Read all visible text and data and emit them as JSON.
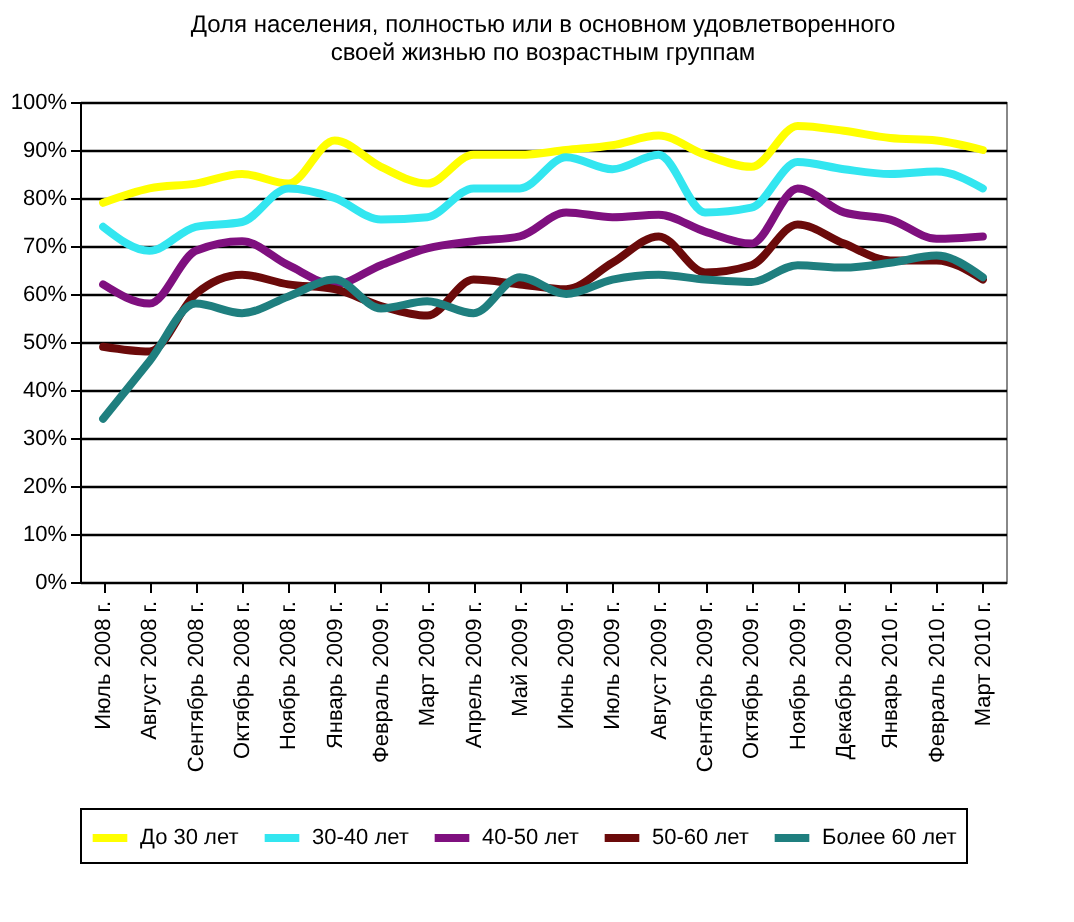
{
  "chart_data": {
    "type": "line",
    "title": [
      "Доля населения, полностью или в основном удовлетворенного",
      "своей жизнью по возрастным группам"
    ],
    "categories": [
      "Июль 2008 г.",
      "Август 2008 г.",
      "Сентябрь 2008 г.",
      "Октябрь 2008 г.",
      "Ноябрь 2008 г.",
      "Январь 2009 г.",
      "Февраль 2009 г.",
      "Март 2009 г.",
      "Апрель 2009 г.",
      "Май 2009 г.",
      "Июнь 2009 г.",
      "Июль 2009 г.",
      "Август 2009 г.",
      "Сентябрь 2009 г.",
      "Октябрь 2009 г.",
      "Ноябрь 2009 г.",
      "Декабрь 2009 г.",
      "Январь 2010 г.",
      "Февраль 2010 г.",
      "Март 2010 г."
    ],
    "series": [
      {
        "name": "До 30 лет",
        "color": "#ffff00",
        "values": [
          79,
          82,
          83,
          85,
          83,
          92,
          86.5,
          83,
          89,
          89,
          90,
          91,
          93,
          89,
          86.5,
          95,
          94,
          92.5,
          92,
          90
        ]
      },
      {
        "name": "30-40 лет",
        "color": "#33e6f0",
        "values": [
          74,
          69,
          74,
          75,
          82,
          80,
          75.5,
          76,
          82,
          82,
          88.5,
          86,
          89,
          77,
          78,
          87.5,
          86,
          85,
          85.5,
          82
        ]
      },
      {
        "name": "40-50 лет",
        "color": "#7f107f",
        "values": [
          62,
          58,
          69,
          71,
          66,
          62,
          66,
          69.5,
          71,
          72,
          77,
          76,
          76.5,
          73,
          70.5,
          82,
          77,
          75.5,
          71.5,
          72
        ]
      },
      {
        "name": "50-60 лет",
        "color": "#6b0a0a",
        "values": [
          49,
          48,
          60,
          64,
          62,
          61,
          57.5,
          55.5,
          63,
          62,
          61,
          66.5,
          72,
          64.5,
          66,
          74.5,
          70.5,
          67,
          67,
          63
        ]
      },
      {
        "name": "Более 60 лет",
        "color": "#1f7f7f",
        "values": [
          34,
          46,
          58,
          56,
          59.5,
          63,
          57,
          58.5,
          56,
          63.5,
          60,
          63,
          64,
          63,
          62.5,
          66,
          65.5,
          66.5,
          68,
          63.5
        ]
      }
    ],
    "ylim": [
      0,
      100
    ],
    "yticks": [
      {
        "value": 0,
        "label": "0%"
      },
      {
        "value": 10,
        "label": "10%"
      },
      {
        "value": 20,
        "label": "20%"
      },
      {
        "value": 30,
        "label": "30%"
      },
      {
        "value": 40,
        "label": "40%"
      },
      {
        "value": 50,
        "label": "50%"
      },
      {
        "value": 60,
        "label": "60%"
      },
      {
        "value": 70,
        "label": "70%"
      },
      {
        "value": 80,
        "label": "80%"
      },
      {
        "value": 90,
        "label": "90%"
      },
      {
        "value": 100,
        "label": "100%"
      }
    ],
    "grid": "y",
    "legend": "bottom",
    "line_style": "solid",
    "marker": "none"
  }
}
